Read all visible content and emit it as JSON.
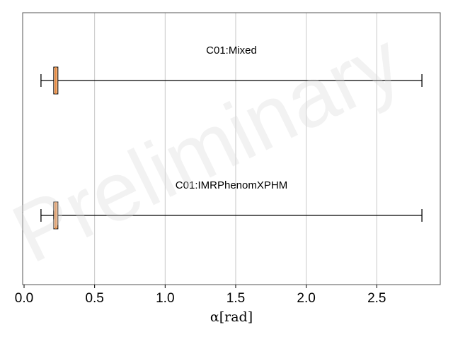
{
  "chart_data": {
    "type": "boxplot",
    "orientation": "horizontal",
    "title": "",
    "xlabel": "α[rad]",
    "ylabel": "",
    "xlim": [
      -0.01,
      2.95
    ],
    "xticks": [
      0.0,
      0.5,
      1.0,
      1.5,
      2.0,
      2.5
    ],
    "xtick_labels": [
      "0.0",
      "0.5",
      "1.0",
      "1.5",
      "2.0",
      "2.5"
    ],
    "grid": "vertical lines at x ticks",
    "box_color": "#fbbf8f",
    "series": [
      {
        "name": "C01:Mixed",
        "whisker_low": 0.12,
        "q1": 0.21,
        "median": 0.225,
        "q3": 0.24,
        "whisker_high": 2.82
      },
      {
        "name": "C01:IMRPhenomXPHM",
        "whisker_low": 0.12,
        "q1": 0.21,
        "median": 0.225,
        "q3": 0.24,
        "whisker_high": 2.82
      }
    ],
    "watermark": "Preliminary"
  }
}
